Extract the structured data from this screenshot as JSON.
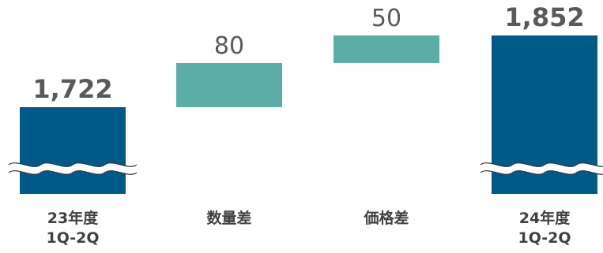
{
  "chart_data": {
    "type": "bar",
    "subtype": "waterfall",
    "axis_break": true,
    "categories": [
      {
        "line1": "23年度",
        "line2": "1Q-2Q"
      },
      {
        "line1": "数量差",
        "line2": ""
      },
      {
        "line1": "価格差",
        "line2": ""
      },
      {
        "line1": "24年度",
        "line2": "1Q-2Q"
      }
    ],
    "bars": [
      {
        "kind": "total",
        "value": 1722,
        "label": "1,722"
      },
      {
        "kind": "delta",
        "value": 80,
        "label": "80"
      },
      {
        "kind": "delta",
        "value": 50,
        "label": "50"
      },
      {
        "kind": "total",
        "value": 1852,
        "label": "1,852"
      }
    ],
    "colors": {
      "total": "#005a87",
      "delta": "#5bada6",
      "label": "#595959",
      "category": "#404040"
    }
  }
}
